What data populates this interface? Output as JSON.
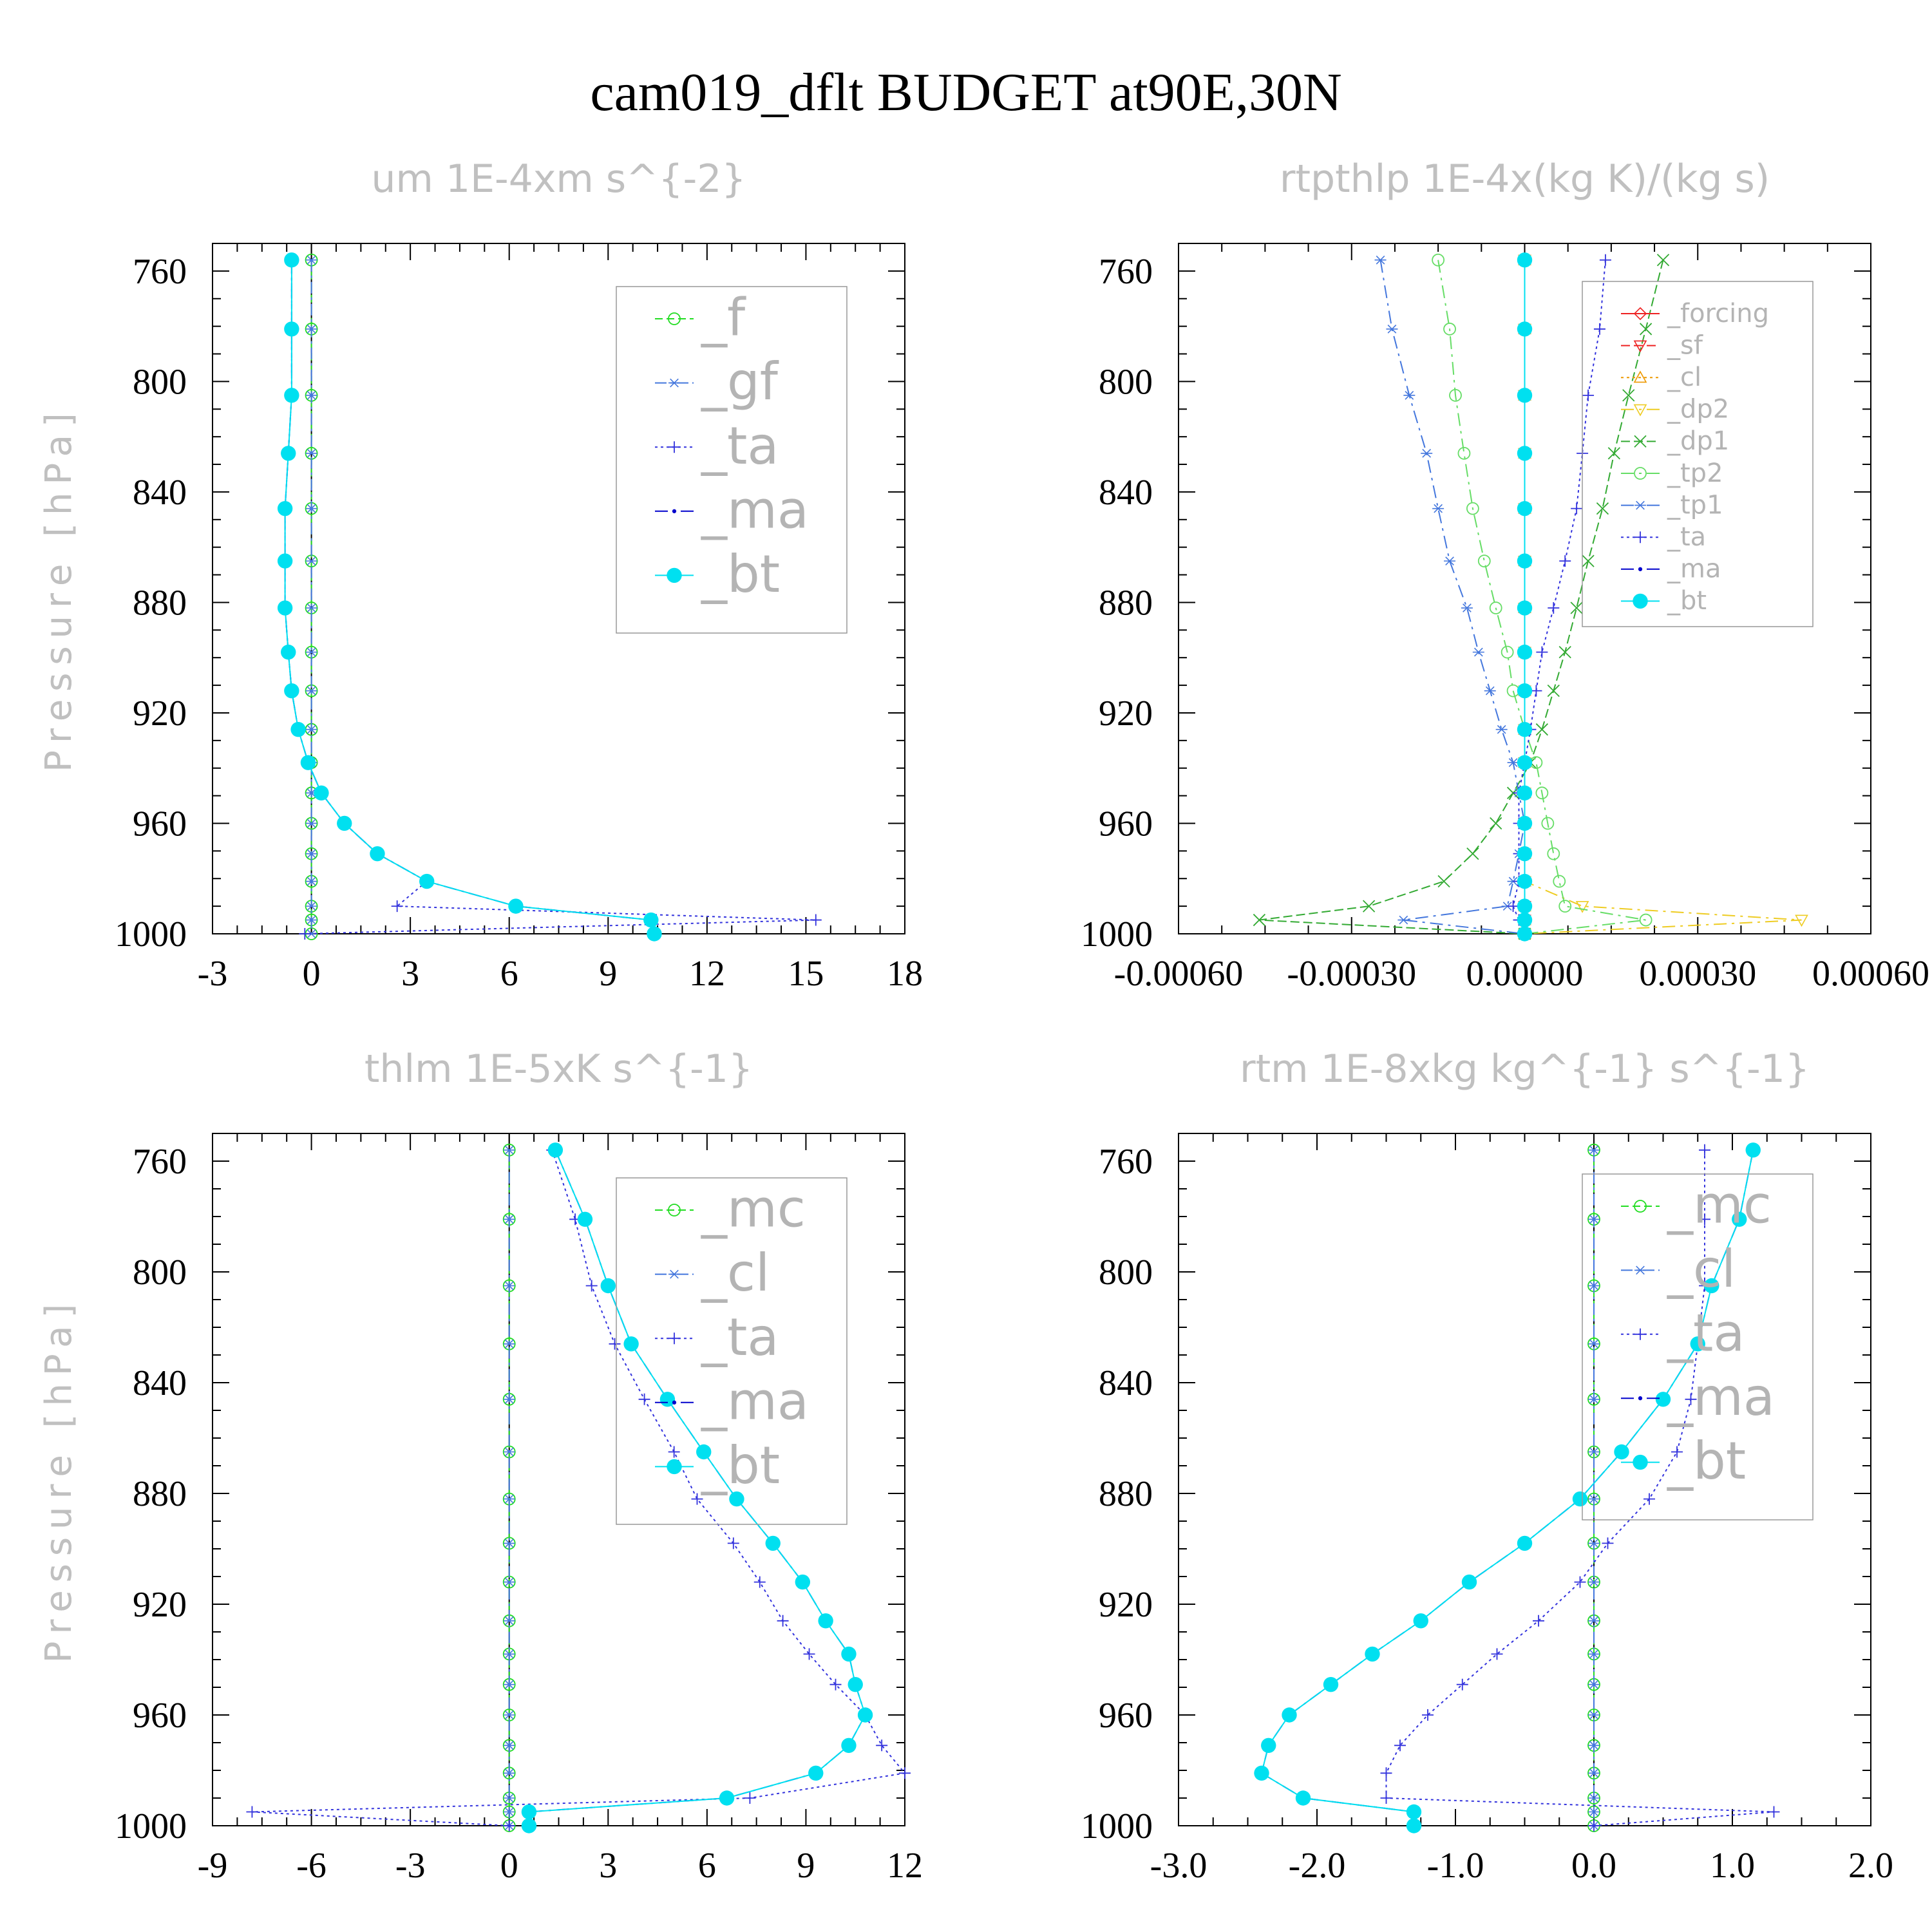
{
  "title": "cam019_dflt  BUDGET at90E,30N",
  "chart_data": [
    {
      "type": "line",
      "title": "um  1E-4xm s^{-2}",
      "ylabel": "Pressure [hPa]",
      "yticks": [
        "760",
        "800",
        "840",
        "880",
        "920",
        "960",
        "1000"
      ],
      "xticks": [
        "-3",
        "0",
        "3",
        "6",
        "9",
        "12",
        "15",
        "18"
      ],
      "xlim": [
        -3,
        18
      ],
      "ylim": [
        750,
        1000
      ],
      "legend_position": "top-right",
      "legend_font": 80,
      "pressure": [
        756,
        781,
        805,
        826,
        846,
        865,
        882,
        898,
        912,
        926,
        938,
        949,
        960,
        971,
        981,
        990,
        995,
        1000
      ],
      "series": [
        {
          "name": "_f",
          "color": "#22dd22",
          "dash": "12,6",
          "marker": "circle-open",
          "values": [
            0,
            0,
            0,
            0,
            0,
            0,
            0,
            0,
            0,
            0,
            0,
            0,
            0,
            0,
            0,
            0,
            0,
            0
          ]
        },
        {
          "name": "_gf",
          "color": "#4477dd",
          "dash": "18,6,4,6",
          "marker": "asterisk",
          "values": [
            0,
            0,
            0,
            0,
            0,
            0,
            0,
            0,
            0,
            0,
            0,
            0,
            0,
            0,
            0,
            0,
            0,
            0
          ]
        },
        {
          "name": "_ta",
          "color": "#3333dd",
          "dash": "4,5",
          "marker": "plus",
          "values": [
            -0.6,
            -0.6,
            -0.6,
            -0.7,
            -0.8,
            -0.8,
            -0.8,
            -0.7,
            -0.6,
            -0.4,
            -0.1,
            0.3,
            1.0,
            2.0,
            3.5,
            2.6,
            15.3,
            -0.2
          ]
        },
        {
          "name": "_ma",
          "color": "#0000cc",
          "dash": "20,8,4,8",
          "marker": "dot",
          "values": [
            -0.6,
            -0.6,
            -0.6,
            -0.7,
            -0.8,
            -0.8,
            -0.8,
            -0.7,
            -0.6,
            -0.4,
            -0.1,
            0.3,
            1.0,
            2.0,
            3.5,
            6.2,
            10.3,
            10.4
          ]
        },
        {
          "name": "_bt",
          "color": "#00e0f0",
          "dash": "",
          "marker": "filled",
          "values": [
            -0.6,
            -0.6,
            -0.6,
            -0.7,
            -0.8,
            -0.8,
            -0.8,
            -0.7,
            -0.6,
            -0.4,
            -0.1,
            0.3,
            1.0,
            2.0,
            3.5,
            6.2,
            10.3,
            10.4
          ]
        }
      ]
    },
    {
      "type": "line",
      "title": "rtpthlp  1E-4x(kg K)/(kg s)",
      "ylabel": "Pressure [hPa]",
      "yticks": [
        "760",
        "800",
        "840",
        "880",
        "920",
        "960",
        "1000"
      ],
      "xticks": [
        "-0.00060",
        "-0.00030",
        "0.00000",
        "0.00030",
        "0.00060"
      ],
      "xlim": [
        -0.0006,
        0.0006
      ],
      "ylim": [
        750,
        1000
      ],
      "legend_position": "top-right",
      "legend_font": 40,
      "pressure": [
        756,
        781,
        805,
        826,
        846,
        865,
        882,
        898,
        912,
        926,
        938,
        949,
        960,
        971,
        981,
        990,
        995,
        1000
      ],
      "series": [
        {
          "name": "_forcing",
          "color": "#ee2222",
          "dash": "",
          "marker": "diamond-open",
          "values": [
            0,
            0,
            0,
            0,
            0,
            0,
            0,
            0,
            0,
            0,
            0,
            0,
            0,
            0,
            0,
            0,
            0,
            0
          ]
        },
        {
          "name": "_sf",
          "color": "#ee2222",
          "dash": "14,6",
          "marker": "triangle-down",
          "values": [
            0,
            0,
            0,
            0,
            0,
            0,
            0,
            0,
            0,
            0,
            0,
            0,
            0,
            0,
            0,
            0,
            0,
            0
          ]
        },
        {
          "name": "_cl",
          "color": "#ee9900",
          "dash": "4,5",
          "marker": "triangle-up",
          "values": [
            0,
            0,
            0,
            0,
            0,
            0,
            0,
            0,
            0,
            0,
            0,
            0,
            0,
            0,
            0,
            0,
            0,
            0
          ]
        },
        {
          "name": "_dp2",
          "color": "#eecc22",
          "dash": "20,8,4,8",
          "marker": "triangle-down",
          "values": [
            0,
            0,
            0,
            0,
            0,
            0,
            0,
            0,
            0,
            0,
            0,
            0,
            0,
            0,
            0,
            0.0001,
            0.00048,
            0
          ]
        },
        {
          "name": "_dp1",
          "color": "#33aa33",
          "dash": "14,6",
          "marker": "cross-x",
          "values": [
            0.00024,
            0.00021,
            0.00018,
            0.000155,
            0.000135,
            0.00011,
            9e-05,
            7e-05,
            5e-05,
            3e-05,
            1e-05,
            -2e-05,
            -5e-05,
            -9e-05,
            -0.00014,
            -0.00027,
            -0.00046,
            0
          ]
        },
        {
          "name": "_tp2",
          "color": "#66dd66",
          "dash": "20,8,4,8",
          "marker": "circle-open",
          "values": [
            -0.00015,
            -0.00013,
            -0.00012,
            -0.000105,
            -9e-05,
            -7e-05,
            -5e-05,
            -3e-05,
            -2e-05,
            0,
            2e-05,
            3e-05,
            4e-05,
            5e-05,
            6e-05,
            7e-05,
            0.00021,
            0
          ]
        },
        {
          "name": "_tp1",
          "color": "#4477dd",
          "dash": "20,8,4,8",
          "marker": "asterisk",
          "values": [
            -0.00025,
            -0.00023,
            -0.0002,
            -0.00017,
            -0.00015,
            -0.00013,
            -0.0001,
            -8e-05,
            -6e-05,
            -4e-05,
            -2e-05,
            -1e-05,
            0,
            -1e-05,
            -2e-05,
            -3e-05,
            -0.00021,
            0
          ]
        },
        {
          "name": "_ta",
          "color": "#3333dd",
          "dash": "4,5",
          "marker": "plus",
          "values": [
            0.00014,
            0.00013,
            0.00011,
            0.0001,
            9e-05,
            7e-05,
            5e-05,
            3e-05,
            2e-05,
            1e-05,
            0,
            -1e-05,
            -1e-05,
            -1e-05,
            -1e-05,
            -2e-05,
            -1e-05,
            0
          ]
        },
        {
          "name": "_ma",
          "color": "#0000cc",
          "dash": "20,8,4,8",
          "marker": "dot",
          "values": [
            0,
            0,
            0,
            0,
            0,
            0,
            0,
            0,
            0,
            0,
            0,
            0,
            0,
            0,
            0,
            0,
            0,
            0
          ]
        },
        {
          "name": "_bt",
          "color": "#00e0f0",
          "dash": "",
          "marker": "filled",
          "values": [
            0,
            0,
            0,
            0,
            0,
            0,
            0,
            0,
            0,
            0,
            0,
            0,
            0,
            0,
            0,
            0,
            0,
            0
          ]
        }
      ]
    },
    {
      "type": "line",
      "title": "thlm  1E-5xK s^{-1}",
      "ylabel": "Pressure [hPa]",
      "yticks": [
        "760",
        "800",
        "840",
        "880",
        "920",
        "960",
        "1000"
      ],
      "xticks": [
        "-9",
        "-6",
        "-3",
        "0",
        "3",
        "6",
        "9",
        "12"
      ],
      "xlim": [
        -9,
        12
      ],
      "ylim": [
        750,
        1000
      ],
      "legend_position": "top-right",
      "legend_font": 80,
      "pressure": [
        756,
        781,
        805,
        826,
        846,
        865,
        882,
        898,
        912,
        926,
        938,
        949,
        960,
        971,
        981,
        990,
        995,
        1000
      ],
      "series": [
        {
          "name": "_mc",
          "color": "#22dd22",
          "dash": "12,6",
          "marker": "circle-open",
          "values": [
            0,
            0,
            0,
            0,
            0,
            0,
            0,
            0,
            0,
            0,
            0,
            0,
            0,
            0,
            0,
            0,
            0,
            0
          ]
        },
        {
          "name": "_cl",
          "color": "#4477dd",
          "dash": "18,6,4,6",
          "marker": "asterisk",
          "values": [
            0,
            0,
            0,
            0,
            0,
            0,
            0,
            0,
            0,
            0,
            0,
            0,
            0,
            0,
            0,
            0,
            0,
            0
          ]
        },
        {
          "name": "_ta",
          "color": "#3333dd",
          "dash": "4,5",
          "marker": "plus",
          "values": [
            1.3,
            2.0,
            2.5,
            3.2,
            4.1,
            5.0,
            5.7,
            6.8,
            7.6,
            8.3,
            9.1,
            9.9,
            10.8,
            11.3,
            12.0,
            7.3,
            -7.8,
            0
          ]
        },
        {
          "name": "_ma",
          "color": "#0000cc",
          "dash": "20,8,4,8",
          "marker": "dot",
          "values": [
            1.4,
            2.3,
            3.0,
            3.7,
            4.8,
            5.9,
            6.9,
            8.0,
            8.9,
            9.6,
            10.3,
            10.5,
            10.8,
            10.3,
            9.3,
            6.6,
            0.6,
            0.6
          ]
        },
        {
          "name": "_bt",
          "color": "#00e0f0",
          "dash": "",
          "marker": "filled",
          "values": [
            1.4,
            2.3,
            3.0,
            3.7,
            4.8,
            5.9,
            6.9,
            8.0,
            8.9,
            9.6,
            10.3,
            10.5,
            10.8,
            10.3,
            9.3,
            6.6,
            0.6,
            0.6
          ]
        }
      ]
    },
    {
      "type": "line",
      "title": "rtm  1E-8xkg kg^{-1} s^{-1}",
      "ylabel": "Pressure [hPa]",
      "yticks": [
        "760",
        "800",
        "840",
        "880",
        "920",
        "960",
        "1000"
      ],
      "xticks": [
        "-3.0",
        "-2.0",
        "-1.0",
        "0.0",
        "1.0",
        "2.0"
      ],
      "xlim": [
        -3,
        2
      ],
      "ylim": [
        750,
        1000
      ],
      "legend_position": "top-right",
      "legend_font": 80,
      "pressure": [
        756,
        781,
        805,
        826,
        846,
        865,
        882,
        898,
        912,
        926,
        938,
        949,
        960,
        971,
        981,
        990,
        995,
        1000
      ],
      "series": [
        {
          "name": "_mc",
          "color": "#22dd22",
          "dash": "12,6",
          "marker": "circle-open",
          "values": [
            0,
            0,
            0,
            0,
            0,
            0,
            0,
            0,
            0,
            0,
            0,
            0,
            0,
            0,
            0,
            0,
            0,
            0
          ]
        },
        {
          "name": "_cl",
          "color": "#4477dd",
          "dash": "18,6,4,6",
          "marker": "asterisk",
          "values": [
            0,
            0,
            0,
            0,
            0,
            0,
            0,
            0,
            0,
            0,
            0,
            0,
            0,
            0,
            0,
            0,
            0,
            0
          ]
        },
        {
          "name": "_ta",
          "color": "#3333dd",
          "dash": "4,5",
          "marker": "plus",
          "values": [
            0.8,
            0.8,
            0.8,
            0.75,
            0.7,
            0.6,
            0.4,
            0.1,
            -0.1,
            -0.4,
            -0.7,
            -0.95,
            -1.2,
            -1.4,
            -1.5,
            -1.5,
            1.3,
            0
          ]
        },
        {
          "name": "_ma",
          "color": "#0000cc",
          "dash": "20,8,4,8",
          "marker": "dot",
          "values": [
            1.15,
            1.05,
            0.85,
            0.75,
            0.5,
            0.2,
            -0.1,
            -0.5,
            -0.9,
            -1.25,
            -1.6,
            -1.9,
            -2.2,
            -2.35,
            -2.4,
            -2.1,
            -1.3,
            -1.3
          ]
        },
        {
          "name": "_bt",
          "color": "#00e0f0",
          "dash": "",
          "marker": "filled",
          "values": [
            1.15,
            1.05,
            0.85,
            0.75,
            0.5,
            0.2,
            -0.1,
            -0.5,
            -0.9,
            -1.25,
            -1.6,
            -1.9,
            -2.2,
            -2.35,
            -2.4,
            -2.1,
            -1.3,
            -1.3
          ]
        }
      ]
    }
  ]
}
